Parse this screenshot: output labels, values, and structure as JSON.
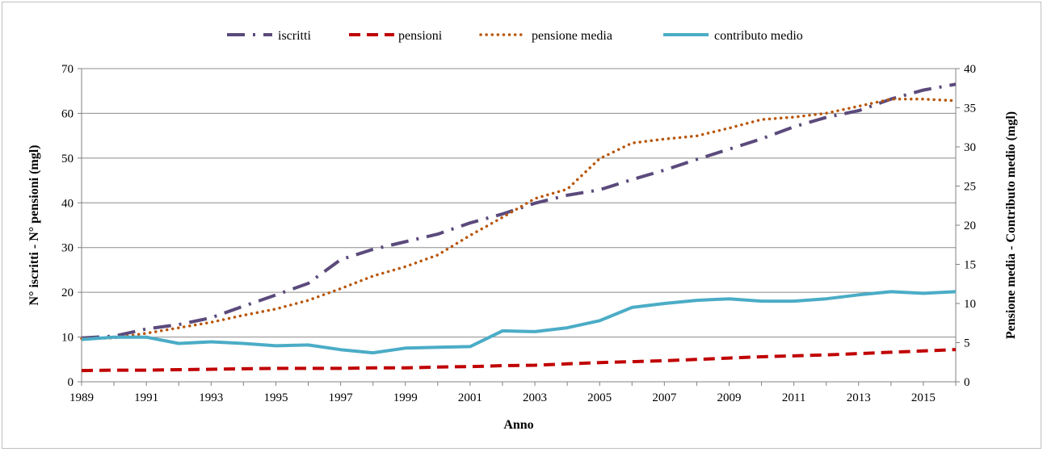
{
  "chart_data": {
    "type": "line",
    "xlabel": "Anno",
    "ylabel": "N° iscritti - N° pensioni (mgl)",
    "y2label": "Pensione media - Contributo medio (mgl)",
    "xlim": [
      1989,
      2016
    ],
    "x_ticks": [
      1989,
      1991,
      1993,
      1995,
      1997,
      1999,
      2001,
      2003,
      2005,
      2007,
      2009,
      2011,
      2013,
      2015
    ],
    "ylim": [
      0,
      70
    ],
    "y_ticks": [
      0,
      10,
      20,
      30,
      40,
      50,
      60,
      70
    ],
    "y2lim": [
      0,
      40
    ],
    "y2_ticks": [
      0,
      5,
      10,
      15,
      20,
      25,
      30,
      35,
      40
    ],
    "grid": true,
    "legend": "top",
    "x": [
      1989,
      1990,
      1991,
      1992,
      1993,
      1994,
      1995,
      1996,
      1997,
      1998,
      1999,
      2000,
      2001,
      2002,
      2003,
      2004,
      2005,
      2006,
      2007,
      2008,
      2009,
      2010,
      2011,
      2012,
      2013,
      2014,
      2015,
      2016
    ],
    "series": [
      {
        "name": "iscritti",
        "axis": "left",
        "color": "#5b4a7c",
        "style": "dashdot",
        "values": [
          9.8,
          10.2,
          11.8,
          12.8,
          14.3,
          16.9,
          19.4,
          22.0,
          27.3,
          29.6,
          31.3,
          33.0,
          35.5,
          37.5,
          39.9,
          41.7,
          42.9,
          45.2,
          47.3,
          49.7,
          52.0,
          54.3,
          57.0,
          59.1,
          60.6,
          63.2,
          65.2,
          66.5
        ]
      },
      {
        "name": "pensioni",
        "axis": "left",
        "color": "#c00000",
        "style": "dashed",
        "values": [
          2.5,
          2.6,
          2.6,
          2.7,
          2.8,
          2.9,
          3.0,
          3.0,
          3.0,
          3.1,
          3.1,
          3.3,
          3.4,
          3.6,
          3.7,
          4.0,
          4.3,
          4.5,
          4.7,
          5.0,
          5.3,
          5.6,
          5.8,
          6.0,
          6.3,
          6.6,
          6.9,
          7.2
        ]
      },
      {
        "name": "pensione media",
        "axis": "right",
        "color": "#b8560b",
        "style": "dotted",
        "values": [
          5.5,
          5.6,
          6.2,
          6.9,
          7.6,
          8.5,
          9.3,
          10.4,
          11.9,
          13.5,
          14.7,
          16.2,
          18.7,
          21.0,
          23.4,
          24.6,
          28.5,
          30.5,
          31.0,
          31.4,
          32.4,
          33.5,
          33.8,
          34.3,
          35.2,
          36.1,
          36.1,
          35.9
        ]
      },
      {
        "name": "contributo medio",
        "axis": "right",
        "color": "#4bacc6",
        "style": "solid",
        "values": [
          5.4,
          5.7,
          5.7,
          4.9,
          5.1,
          4.9,
          4.6,
          4.7,
          4.1,
          3.7,
          4.3,
          4.4,
          4.5,
          6.5,
          6.4,
          6.9,
          7.8,
          9.5,
          10.0,
          10.4,
          10.6,
          10.3,
          10.3,
          10.6,
          11.1,
          11.5,
          11.3,
          11.5
        ]
      }
    ]
  }
}
